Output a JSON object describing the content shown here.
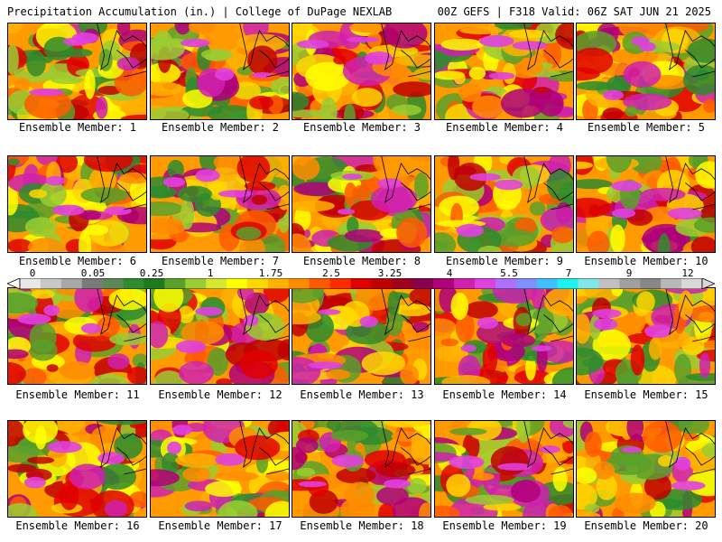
{
  "header": {
    "left_title": "Precipitation Accumulation (in.) | College of DuPage NEXLAB",
    "right_title": "00Z GEFS | F318 Valid: 06Z SAT JUN 21 2025"
  },
  "members": [
    {
      "label": "Ensemble Member: 1"
    },
    {
      "label": "Ensemble Member: 2"
    },
    {
      "label": "Ensemble Member: 3"
    },
    {
      "label": "Ensemble Member: 4"
    },
    {
      "label": "Ensemble Member: 5"
    },
    {
      "label": "Ensemble Member: 6"
    },
    {
      "label": "Ensemble Member: 7"
    },
    {
      "label": "Ensemble Member: 8"
    },
    {
      "label": "Ensemble Member: 9"
    },
    {
      "label": "Ensemble Member: 10"
    },
    {
      "label": "Ensemble Member: 11"
    },
    {
      "label": "Ensemble Member: 12"
    },
    {
      "label": "Ensemble Member: 13"
    },
    {
      "label": "Ensemble Member: 14"
    },
    {
      "label": "Ensemble Member: 15"
    },
    {
      "label": "Ensemble Member: 16"
    },
    {
      "label": "Ensemble Member: 17"
    },
    {
      "label": "Ensemble Member: 18"
    },
    {
      "label": "Ensemble Member: 19"
    },
    {
      "label": "Ensemble Member: 20"
    }
  ],
  "colorbar": {
    "labels": [
      "0",
      "0.05",
      "0.25",
      "1",
      "1.75",
      "2.5",
      "3.25",
      "4",
      "5.5",
      "7",
      "9",
      "12"
    ],
    "colors": [
      "#e8e8e8",
      "#c8c8c8",
      "#a8a8a8",
      "#7a7a7a",
      "#5a8a5a",
      "#2e8b2e",
      "#1f7a1f",
      "#5aa02a",
      "#9acd32",
      "#d8e830",
      "#ffff00",
      "#ffd700",
      "#ffb000",
      "#ff8c00",
      "#ff5a00",
      "#ff2a00",
      "#e00000",
      "#c00000",
      "#a00020",
      "#8b0050",
      "#b0007a",
      "#d020b0",
      "#e040e0",
      "#b070ff",
      "#8090ff",
      "#40c0ff",
      "#20f0f0",
      "#80e8e8",
      "#c0c0c0",
      "#a0a0a0",
      "#888888",
      "#b8b8b8",
      "#d8d8d8"
    ]
  }
}
